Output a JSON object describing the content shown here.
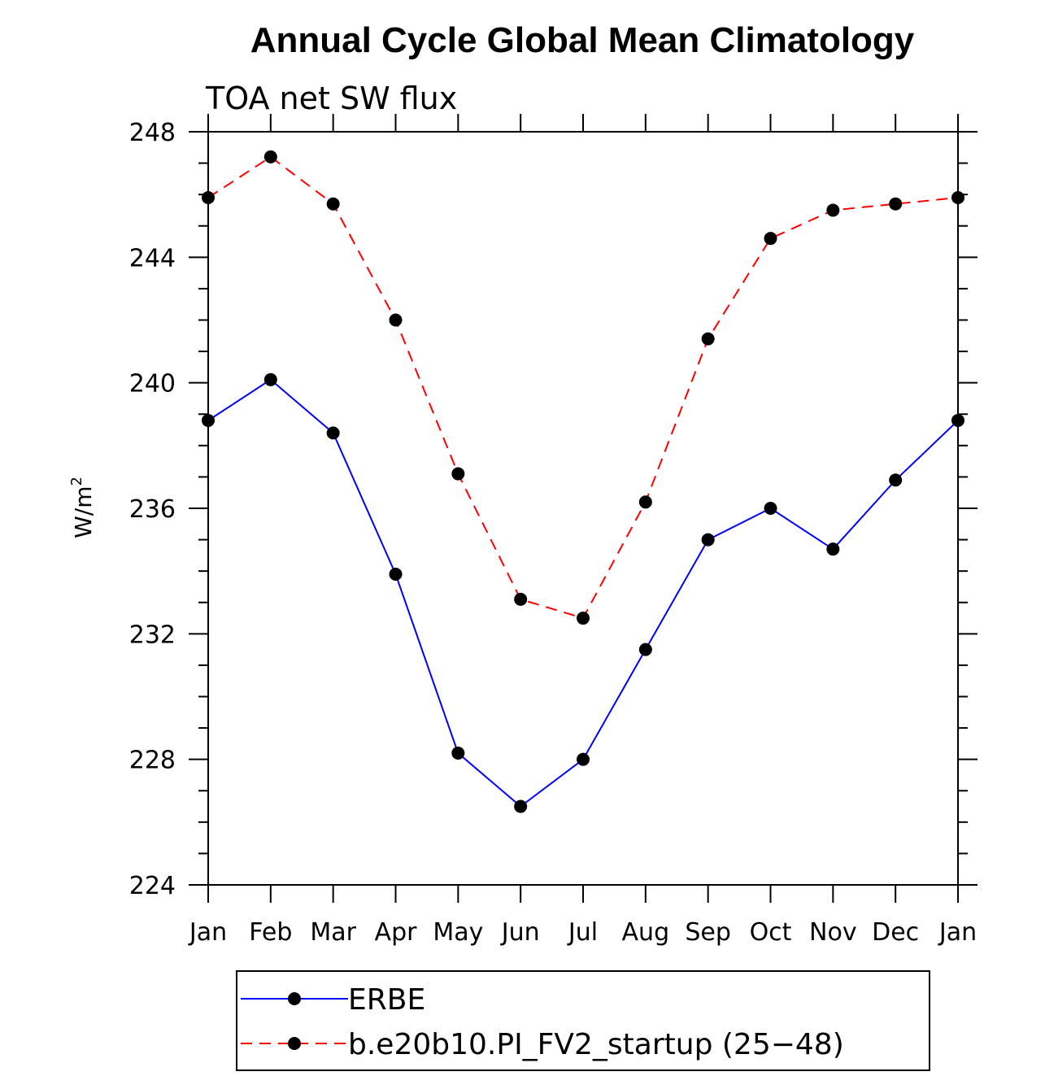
{
  "chart_data": {
    "type": "line",
    "title": "Annual Cycle Global Mean Climatology",
    "subtitle": "TOA net SW flux",
    "ylabel": "W/m",
    "ylabel_sup": "2",
    "ylim": [
      224,
      248
    ],
    "yticks": [
      "224",
      "228",
      "232",
      "236",
      "240",
      "244",
      "248"
    ],
    "yminor_step": 1,
    "categories": [
      "Jan",
      "Feb",
      "Mar",
      "Apr",
      "May",
      "Jun",
      "Jul",
      "Aug",
      "Sep",
      "Oct",
      "Nov",
      "Dec",
      "Jan"
    ],
    "series": [
      {
        "name": "ERBE",
        "color": "#0000ff",
        "dash": "solid",
        "values": [
          238.8,
          240.1,
          238.4,
          233.9,
          228.2,
          226.5,
          228.0,
          231.5,
          235.0,
          236.0,
          234.7,
          236.9,
          238.8
        ]
      },
      {
        "name": "b.e20b10.PI_FV2_startup (25−48)",
        "color": "#ff0000",
        "dash": "dashed",
        "values": [
          245.9,
          247.2,
          245.7,
          242.0,
          237.1,
          233.1,
          232.5,
          236.2,
          241.4,
          244.6,
          245.5,
          245.7,
          245.9
        ]
      }
    ],
    "grid": false,
    "legend_position": "bottom"
  }
}
